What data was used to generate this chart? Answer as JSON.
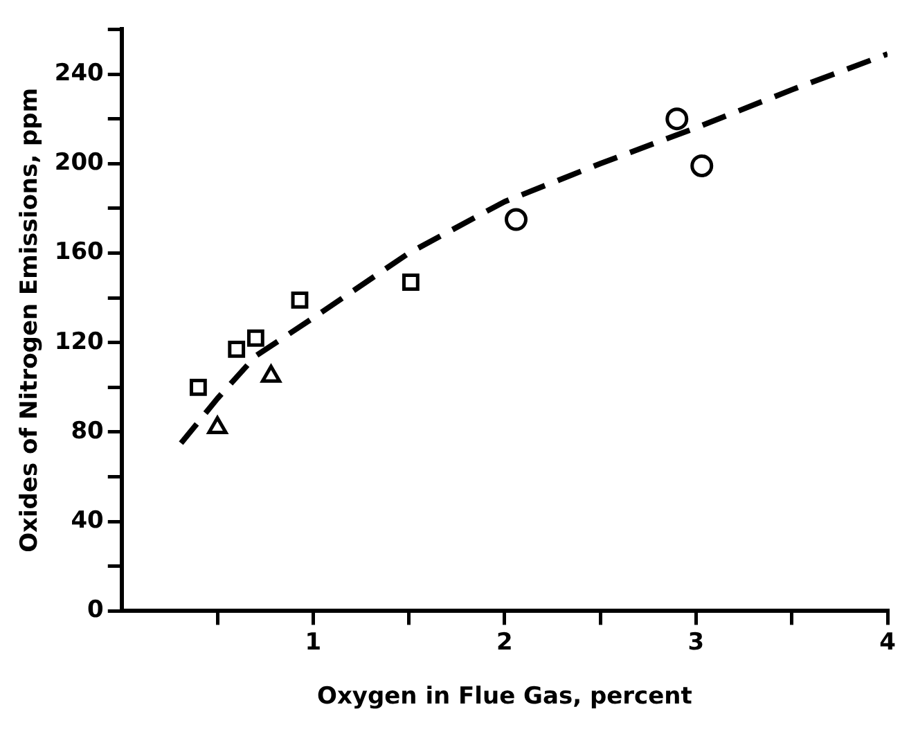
{
  "chart_data": {
    "type": "scatter",
    "xlabel": "Oxygen in Flue Gas, percent",
    "ylabel": "Oxides of Nitrogen Emissions, ppm",
    "series": [
      {
        "color": "#000000",
        "marker": "square",
        "x": [
          0.4,
          0.6,
          0.7,
          0.93,
          1.51
        ],
        "values": [
          100,
          117,
          122,
          139,
          147
        ]
      },
      {
        "color": "#000000",
        "marker": "triangle",
        "x": [
          0.5,
          0.78
        ],
        "values": [
          82,
          105
        ]
      },
      {
        "color": "#000000",
        "marker": "circle",
        "x": [
          2.06,
          2.9,
          3.03
        ],
        "values": [
          175,
          220,
          199
        ]
      },
      {
        "type": "line",
        "color": "#000000",
        "marker": "none",
        "line_style": "dashed",
        "x": [
          0.31,
          0.5,
          0.7,
          1,
          1.5,
          2,
          2.5,
          3,
          3.5,
          4
        ],
        "values": [
          75,
          95,
          114,
          131,
          160,
          183,
          200,
          216,
          233,
          249
        ]
      }
    ],
    "xlim": [
      0,
      4
    ],
    "xticks": [
      {
        "value": 0.5,
        "label": null
      },
      1,
      {
        "value": 1.5,
        "label": null
      },
      2,
      {
        "value": 2.5,
        "label": null
      },
      3,
      {
        "value": 3.5,
        "label": null
      },
      4
    ],
    "ylim": [
      0,
      260
    ],
    "yticks": [
      0,
      {
        "value": 20,
        "label": null
      },
      40,
      {
        "value": 60,
        "label": null
      },
      80,
      {
        "value": 100,
        "label": null
      },
      120,
      {
        "value": 140,
        "label": null
      },
      160,
      {
        "value": 180,
        "label": null
      },
      200,
      {
        "value": 220,
        "label": null
      },
      240,
      {
        "value": 260,
        "label": null
      }
    ],
    "grid": false,
    "legend": false
  }
}
